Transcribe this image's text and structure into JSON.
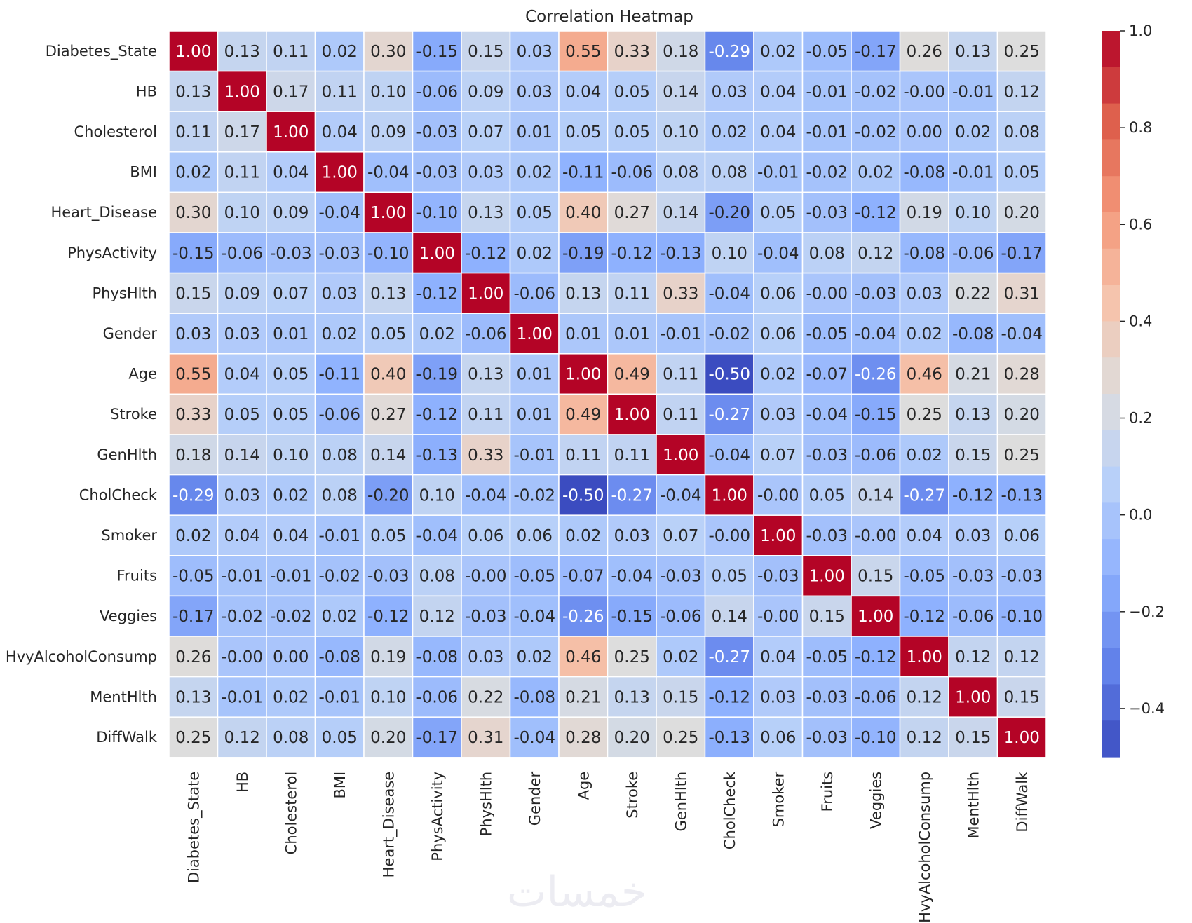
{
  "chart_data": {
    "type": "heatmap",
    "title": "Correlation Heatmap",
    "labels": [
      "Diabetes_State",
      "HB",
      "Cholesterol",
      "BMI",
      "Heart_Disease",
      "PhysActivity",
      "PhysHlth",
      "Gender",
      "Age",
      "Stroke",
      "GenHlth",
      "CholCheck",
      "Smoker",
      "Fruits",
      "Veggies",
      "HvyAlcoholConsump",
      "MentHlth",
      "DiffWalk"
    ],
    "matrix": [
      [
        1.0,
        0.13,
        0.11,
        0.02,
        0.3,
        -0.15,
        0.15,
        0.03,
        0.55,
        0.33,
        0.18,
        -0.29,
        0.02,
        -0.05,
        -0.17,
        0.26,
        0.13,
        0.25
      ],
      [
        0.13,
        1.0,
        0.17,
        0.11,
        0.1,
        -0.06,
        0.09,
        0.03,
        0.04,
        0.05,
        0.14,
        0.03,
        0.04,
        -0.01,
        -0.02,
        -0.0,
        -0.01,
        0.12
      ],
      [
        0.11,
        0.17,
        1.0,
        0.04,
        0.09,
        -0.03,
        0.07,
        0.01,
        0.05,
        0.05,
        0.1,
        0.02,
        0.04,
        -0.01,
        -0.02,
        0.0,
        0.02,
        0.08
      ],
      [
        0.02,
        0.11,
        0.04,
        1.0,
        -0.04,
        -0.03,
        0.03,
        0.02,
        -0.11,
        -0.06,
        0.08,
        0.08,
        -0.01,
        -0.02,
        0.02,
        -0.08,
        -0.01,
        0.05
      ],
      [
        0.3,
        0.1,
        0.09,
        -0.04,
        1.0,
        -0.1,
        0.13,
        0.05,
        0.4,
        0.27,
        0.14,
        -0.2,
        0.05,
        -0.03,
        -0.12,
        0.19,
        0.1,
        0.2
      ],
      [
        -0.15,
        -0.06,
        -0.03,
        -0.03,
        -0.1,
        1.0,
        -0.12,
        0.02,
        -0.19,
        -0.12,
        -0.13,
        0.1,
        -0.04,
        0.08,
        0.12,
        -0.08,
        -0.06,
        -0.17
      ],
      [
        0.15,
        0.09,
        0.07,
        0.03,
        0.13,
        -0.12,
        1.0,
        -0.06,
        0.13,
        0.11,
        0.33,
        -0.04,
        0.06,
        -0.0,
        -0.03,
        0.03,
        0.22,
        0.31
      ],
      [
        0.03,
        0.03,
        0.01,
        0.02,
        0.05,
        0.02,
        -0.06,
        1.0,
        0.01,
        0.01,
        -0.01,
        -0.02,
        0.06,
        -0.05,
        -0.04,
        0.02,
        -0.08,
        -0.04
      ],
      [
        0.55,
        0.04,
        0.05,
        -0.11,
        0.4,
        -0.19,
        0.13,
        0.01,
        1.0,
        0.49,
        0.11,
        -0.5,
        0.02,
        -0.07,
        -0.26,
        0.46,
        0.21,
        0.28
      ],
      [
        0.33,
        0.05,
        0.05,
        -0.06,
        0.27,
        -0.12,
        0.11,
        0.01,
        0.49,
        1.0,
        0.11,
        -0.27,
        0.03,
        -0.04,
        -0.15,
        0.25,
        0.13,
        0.2
      ],
      [
        0.18,
        0.14,
        0.1,
        0.08,
        0.14,
        -0.13,
        0.33,
        -0.01,
        0.11,
        0.11,
        1.0,
        -0.04,
        0.07,
        -0.03,
        -0.06,
        0.02,
        0.15,
        0.25
      ],
      [
        -0.29,
        0.03,
        0.02,
        0.08,
        -0.2,
        0.1,
        -0.04,
        -0.02,
        -0.5,
        -0.27,
        -0.04,
        1.0,
        -0.0,
        0.05,
        0.14,
        -0.27,
        -0.12,
        -0.13
      ],
      [
        0.02,
        0.04,
        0.04,
        -0.01,
        0.05,
        -0.04,
        0.06,
        0.06,
        0.02,
        0.03,
        0.07,
        -0.0,
        1.0,
        -0.03,
        -0.0,
        0.04,
        0.03,
        0.06
      ],
      [
        -0.05,
        -0.01,
        -0.01,
        -0.02,
        -0.03,
        0.08,
        -0.0,
        -0.05,
        -0.07,
        -0.04,
        -0.03,
        0.05,
        -0.03,
        1.0,
        0.15,
        -0.05,
        -0.03,
        -0.03
      ],
      [
        -0.17,
        -0.02,
        -0.02,
        0.02,
        -0.12,
        0.12,
        -0.03,
        -0.04,
        -0.26,
        -0.15,
        -0.06,
        0.14,
        -0.0,
        0.15,
        1.0,
        -0.12,
        -0.06,
        -0.1
      ],
      [
        0.26,
        -0.0,
        0.0,
        -0.08,
        0.19,
        -0.08,
        0.03,
        0.02,
        0.46,
        0.25,
        0.02,
        -0.27,
        0.04,
        -0.05,
        -0.12,
        1.0,
        0.12,
        0.12
      ],
      [
        0.13,
        -0.01,
        0.02,
        -0.01,
        0.1,
        -0.06,
        0.22,
        -0.08,
        0.21,
        0.13,
        0.15,
        -0.12,
        0.03,
        -0.03,
        -0.06,
        0.12,
        1.0,
        0.15
      ],
      [
        0.25,
        0.12,
        0.08,
        0.05,
        0.2,
        -0.17,
        0.31,
        -0.04,
        0.28,
        0.2,
        0.25,
        -0.13,
        0.06,
        -0.03,
        -0.1,
        0.12,
        0.15,
        1.0
      ]
    ],
    "value_format": "2 decimals",
    "colormap": "coolwarm",
    "vmin": -0.5,
    "vmax": 1.0,
    "colorbar": {
      "ticks": [
        1.0,
        0.8,
        0.6,
        0.4,
        0.2,
        0.0,
        -0.2,
        -0.4
      ],
      "tick_labels": [
        "1.0",
        "0.8",
        "0.6",
        "0.4",
        "0.2",
        "0.0",
        "−0.2",
        "−0.4"
      ],
      "placement": "right",
      "discrete_steps": 20
    },
    "grid": true,
    "cell_border_color": "#ffffff",
    "text_color_light": "#ffffff",
    "text_color_dark": "#262626"
  },
  "watermark": {
    "text": "خمسات"
  }
}
